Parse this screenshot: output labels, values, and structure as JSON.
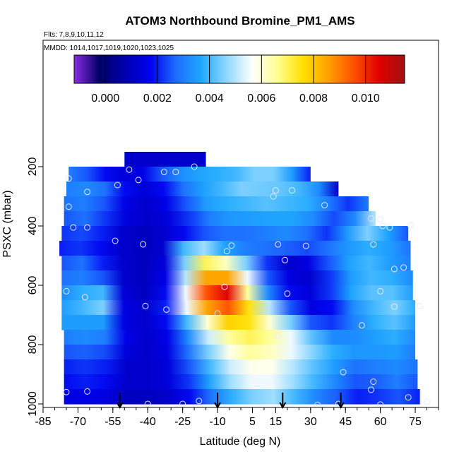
{
  "chart_data": {
    "type": "heatmap",
    "title": "ATOM3 Northbound Bromine_PM1_AMS",
    "flights_note": "Flts: 7,8,9,10,11,12",
    "dates_note": "MMDD: 1014,1017,1019,1020,1023,1025",
    "xlabel": "Latitude (deg N)",
    "ylabel": "PSXC (mbar)",
    "xlim": [
      -85,
      85
    ],
    "ylim": [
      1000,
      150
    ],
    "y_inverted": true,
    "x_ticks": [
      -85,
      -70,
      -55,
      -40,
      -25,
      -10,
      5,
      15,
      30,
      45,
      60,
      75
    ],
    "x_tick_labels": [
      "-85",
      "-70",
      "-55",
      "-40",
      "-25",
      "-10",
      "5",
      "15",
      "30",
      "45",
      "60",
      "75"
    ],
    "y_ticks": [
      200,
      400,
      600,
      800,
      1000
    ],
    "y_tick_labels": [
      "200",
      "400",
      "600",
      "800",
      "1000"
    ],
    "colorbar": {
      "range": [
        -0.0012,
        0.0115
      ],
      "ticks": [
        0.0,
        0.002,
        0.004,
        0.006,
        0.008,
        0.01
      ],
      "tick_labels": [
        "0.000",
        "0.002",
        "0.004",
        "0.006",
        "0.008",
        "0.010"
      ],
      "colors": [
        "#8a2be2",
        "#000066",
        "#0000b0",
        "#0000f0",
        "#1e6cff",
        "#1ea8ff",
        "#8fd8ff",
        "#ffffff",
        "#ffff90",
        "#ffe000",
        "#ffa000",
        "#ff5000",
        "#e00000",
        "#a01010"
      ]
    },
    "pressure_levels": [
      175,
      200,
      250,
      275,
      300,
      350,
      400,
      450,
      500,
      550,
      600,
      650,
      700,
      750,
      800,
      850,
      900,
      950,
      1000
    ],
    "bands": [
      {
        "p": 175,
        "lat_min": -50,
        "lat_max": -15,
        "values": [
          0.0012,
          0.0012,
          0.0012,
          0.0012
        ]
      },
      {
        "p": 225,
        "lat_min": -74,
        "lat_max": 30,
        "values": [
          0.003,
          0.0025,
          0.0018,
          0.0014,
          0.0016,
          0.0025,
          0.0032,
          0.0036,
          0.0038,
          0.004,
          0.0045,
          0.0045,
          0.0035,
          0.002
        ]
      },
      {
        "p": 275,
        "lat_min": -75,
        "lat_max": 42,
        "values": [
          0.003,
          0.0032,
          0.0028,
          0.0018,
          0.0014,
          0.0018,
          0.0028,
          0.0035,
          0.004,
          0.0045,
          0.0044,
          0.0043,
          0.004,
          0.0032,
          0.0012
        ]
      },
      {
        "p": 325,
        "lat_min": -76,
        "lat_max": 55,
        "values": [
          0.0028,
          0.003,
          0.0025,
          0.0016,
          0.0012,
          0.0016,
          0.0025,
          0.0035,
          0.0038,
          0.004,
          0.0042,
          0.004,
          0.0038,
          0.003,
          0.0022,
          0.003
        ]
      },
      {
        "p": 375,
        "lat_min": -76,
        "lat_max": 58,
        "values": [
          0.0025,
          0.0028,
          0.0022,
          0.0014,
          0.0012,
          0.0014,
          0.0022,
          0.003,
          0.0034,
          0.0035,
          0.0036,
          0.0036,
          0.0032,
          0.0024,
          0.0032,
          0.005
        ]
      },
      {
        "p": 425,
        "lat_min": -77,
        "lat_max": 72,
        "values": [
          0.0022,
          0.0024,
          0.002,
          0.0012,
          0.001,
          0.0012,
          0.0018,
          0.0025,
          0.0028,
          0.0028,
          0.003,
          0.0032,
          0.0028,
          0.0022,
          0.0034,
          0.0045,
          0.0036,
          0.0025
        ]
      },
      {
        "p": 475,
        "lat_min": -78,
        "lat_max": 73,
        "values": [
          0.002,
          0.0022,
          0.0018,
          0.0012,
          0.001,
          0.0012,
          0.004,
          0.0048,
          0.0036,
          0.003,
          0.0028,
          0.0026,
          0.0024,
          0.0028,
          0.0034,
          0.0038,
          0.0035,
          0.0028
        ]
      },
      {
        "p": 525,
        "lat_min": -77,
        "lat_max": 73,
        "values": [
          0.0025,
          0.0028,
          0.002,
          0.0012,
          0.001,
          0.0014,
          0.0045,
          0.007,
          0.0062,
          0.0045,
          0.0022,
          0.0012,
          0.0015,
          0.0025,
          0.0036,
          0.004,
          0.0035,
          0.003
        ]
      },
      {
        "p": 575,
        "lat_min": -77,
        "lat_max": 74,
        "values": [
          0.0028,
          0.003,
          0.0025,
          0.0012,
          0.001,
          0.0016,
          0.005,
          0.0085,
          0.0085,
          0.0055,
          0.0025,
          0.0015,
          0.0012,
          0.0022,
          0.0035,
          0.004,
          0.0038,
          0.0032
        ]
      },
      {
        "p": 625,
        "lat_min": -77,
        "lat_max": 74,
        "values": [
          0.0032,
          0.0038,
          0.004,
          0.0014,
          0.001,
          0.0018,
          0.0055,
          0.0095,
          0.0105,
          0.0065,
          0.0032,
          0.0018,
          0.0014,
          0.0022,
          0.0036,
          0.0042,
          0.0042,
          0.0035
        ]
      },
      {
        "p": 675,
        "lat_min": -77,
        "lat_max": 75,
        "values": [
          0.0035,
          0.004,
          0.0045,
          0.0015,
          0.0012,
          0.002,
          0.0055,
          0.0085,
          0.0095,
          0.0075,
          0.005,
          0.0025,
          0.0015,
          0.0018,
          0.0032,
          0.004,
          0.0045,
          0.0038
        ]
      },
      {
        "p": 725,
        "lat_min": -77,
        "lat_max": 75,
        "values": [
          0.0035,
          0.0035,
          0.0035,
          0.0015,
          0.0012,
          0.0018,
          0.004,
          0.006,
          0.0078,
          0.0075,
          0.006,
          0.0045,
          0.0025,
          0.0022,
          0.003,
          0.0038,
          0.0042,
          0.0035
        ]
      },
      {
        "p": 775,
        "lat_min": -76,
        "lat_max": 75,
        "values": [
          0.003,
          0.0032,
          0.003,
          0.0016,
          0.0012,
          0.0016,
          0.0032,
          0.0052,
          0.0065,
          0.007,
          0.0065,
          0.0055,
          0.0042,
          0.0032,
          0.0032,
          0.0035,
          0.0038,
          0.0032
        ]
      },
      {
        "p": 825,
        "lat_min": -76,
        "lat_max": 75,
        "values": [
          0.0025,
          0.0026,
          0.0024,
          0.0014,
          0.0012,
          0.0015,
          0.0028,
          0.0045,
          0.0058,
          0.0065,
          0.0062,
          0.0055,
          0.0046,
          0.0038,
          0.0034,
          0.0034,
          0.0035,
          0.003
        ]
      },
      {
        "p": 875,
        "lat_min": -76,
        "lat_max": 76,
        "values": [
          0.002,
          0.0022,
          0.002,
          0.0012,
          0.0012,
          0.0014,
          0.0025,
          0.004,
          0.0052,
          0.0058,
          0.0058,
          0.005,
          0.0042,
          0.0035,
          0.0028,
          0.003,
          0.0032,
          0.0028
        ]
      },
      {
        "p": 925,
        "lat_min": -76,
        "lat_max": 76,
        "values": [
          0.0018,
          0.002,
          0.0018,
          0.0012,
          0.0012,
          0.0014,
          0.0022,
          0.0036,
          0.0048,
          0.0055,
          0.0055,
          0.0048,
          0.004,
          0.0032,
          0.0025,
          0.0026,
          0.003,
          0.0025
        ]
      },
      {
        "p": 975,
        "lat_min": -76,
        "lat_max": 77,
        "values": [
          0.0015,
          0.0016,
          0.0015,
          0.001,
          0.001,
          0.0012,
          0.0018,
          0.0028,
          0.0038,
          0.0045,
          0.0048,
          0.004,
          0.0032,
          0.0026,
          0.002,
          0.0022,
          0.0025,
          0.002
        ]
      }
    ],
    "points": [
      {
        "lat": -48,
        "p": 210
      },
      {
        "lat": -33,
        "p": 218
      },
      {
        "lat": -28,
        "p": 218
      },
      {
        "lat": -20,
        "p": 200
      },
      {
        "lat": -74,
        "p": 240
      },
      {
        "lat": -44,
        "p": 245
      },
      {
        "lat": -53,
        "p": 262
      },
      {
        "lat": 15,
        "p": 280
      },
      {
        "lat": 22,
        "p": 280
      },
      {
        "lat": -66,
        "p": 285
      },
      {
        "lat": 14,
        "p": 300
      },
      {
        "lat": 36,
        "p": 330
      },
      {
        "lat": -74,
        "p": 335
      },
      {
        "lat": 56,
        "p": 375
      },
      {
        "lat": 60,
        "p": 378
      },
      {
        "lat": -72,
        "p": 405
      },
      {
        "lat": -66,
        "p": 405
      },
      {
        "lat": 61,
        "p": 400
      },
      {
        "lat": 64,
        "p": 405
      },
      {
        "lat": 73,
        "p": 398
      },
      {
        "lat": -54,
        "p": 450
      },
      {
        "lat": -42,
        "p": 462
      },
      {
        "lat": -4,
        "p": 466
      },
      {
        "lat": 16,
        "p": 462
      },
      {
        "lat": 28,
        "p": 467
      },
      {
        "lat": 57,
        "p": 462
      },
      {
        "lat": -6,
        "p": 485
      },
      {
        "lat": 19,
        "p": 515
      },
      {
        "lat": 66,
        "p": 545
      },
      {
        "lat": 70,
        "p": 540
      },
      {
        "lat": -7,
        "p": 605
      },
      {
        "lat": 20,
        "p": 628
      },
      {
        "lat": -75,
        "p": 620
      },
      {
        "lat": -67,
        "p": 640
      },
      {
        "lat": 60,
        "p": 620
      },
      {
        "lat": -41,
        "p": 670
      },
      {
        "lat": -32,
        "p": 682
      },
      {
        "lat": -10,
        "p": 695
      },
      {
        "lat": 66,
        "p": 672
      },
      {
        "lat": 77,
        "p": 670
      },
      {
        "lat": 16,
        "p": 770
      },
      {
        "lat": 52,
        "p": 735
      },
      {
        "lat": 44,
        "p": 893
      },
      {
        "lat": 57,
        "p": 925
      },
      {
        "lat": -75,
        "p": 960
      },
      {
        "lat": -66,
        "p": 958
      },
      {
        "lat": -40,
        "p": 1000
      },
      {
        "lat": -25,
        "p": 1000
      },
      {
        "lat": -18,
        "p": 990
      },
      {
        "lat": 33,
        "p": 1003
      },
      {
        "lat": 42,
        "p": 1000
      },
      {
        "lat": 60,
        "p": 1002
      },
      {
        "lat": 72,
        "p": 978
      },
      {
        "lat": 80,
        "p": 993
      },
      {
        "lat": 56,
        "p": 952
      }
    ],
    "arrows": [
      -52,
      -10,
      18,
      43
    ]
  }
}
